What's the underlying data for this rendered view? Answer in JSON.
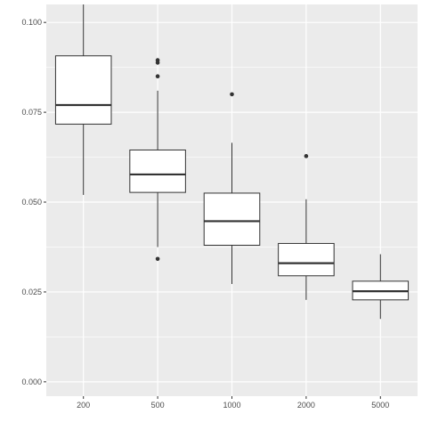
{
  "chart_data": {
    "type": "boxplot",
    "title": "",
    "xlabel": "",
    "ylabel": "",
    "ylim": [
      -0.004,
      0.105
    ],
    "yticks": [
      0.0,
      0.025,
      0.05,
      0.075,
      0.1
    ],
    "ytick_labels": [
      "0.000",
      "0.025",
      "0.050",
      "0.075",
      "0.100"
    ],
    "categories": [
      "200",
      "500",
      "1000",
      "2000",
      "5000"
    ],
    "grid": true,
    "legend": "none",
    "colors": {
      "panel": "#ebebeb",
      "grid": "#ffffff",
      "box_fill": "#ffffff",
      "box_stroke": "#333333"
    },
    "boxes": [
      {
        "category": "200",
        "whisker_low": 0.052,
        "q1": 0.0717,
        "median": 0.077,
        "q3": 0.0907,
        "whisker_high": 0.105,
        "outliers": []
      },
      {
        "category": "500",
        "whisker_low": 0.0375,
        "q1": 0.0527,
        "median": 0.0577,
        "q3": 0.0645,
        "whisker_high": 0.081,
        "outliers": [
          0.0895,
          0.0888,
          0.085,
          0.0342
        ]
      },
      {
        "category": "1000",
        "whisker_low": 0.0272,
        "q1": 0.038,
        "median": 0.0447,
        "q3": 0.0525,
        "whisker_high": 0.0665,
        "outliers": [
          0.08
        ]
      },
      {
        "category": "2000",
        "whisker_low": 0.0228,
        "q1": 0.0295,
        "median": 0.033,
        "q3": 0.0385,
        "whisker_high": 0.0508,
        "outliers": [
          0.0628
        ]
      },
      {
        "category": "5000",
        "whisker_low": 0.0175,
        "q1": 0.0228,
        "median": 0.0252,
        "q3": 0.028,
        "whisker_high": 0.0355,
        "outliers": []
      }
    ]
  }
}
